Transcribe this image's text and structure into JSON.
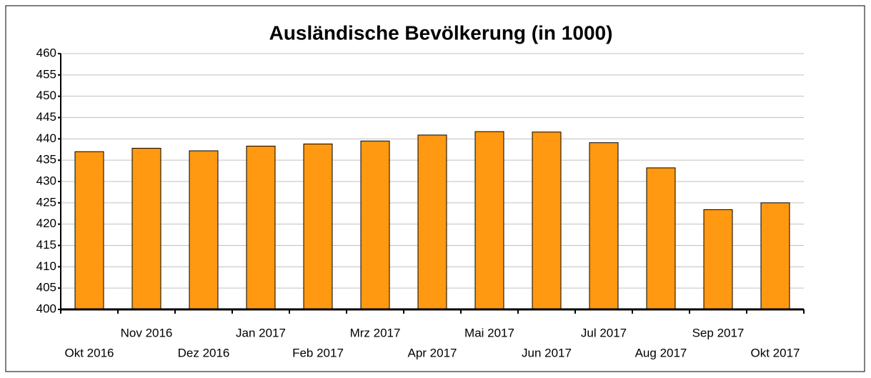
{
  "chart_data": {
    "type": "bar",
    "title": "Ausländische Bevölkerung (in 1000)",
    "categories": [
      "Okt 2016",
      "Nov 2016",
      "Dez 2016",
      "Jan 2017",
      "Feb 2017",
      "Mrz 2017",
      "Apr 2017",
      "Mai 2017",
      "Jun 2017",
      "Jul 2017",
      "Aug 2017",
      "Sep 2017",
      "Okt 2017"
    ],
    "values": [
      437,
      437.8,
      437.2,
      438.3,
      438.8,
      439.5,
      440.9,
      441.7,
      441.6,
      439.1,
      433.2,
      423.4,
      425
    ],
    "color": "#ff9911",
    "ylim": [
      400,
      460
    ],
    "yticks": [
      400,
      405,
      410,
      415,
      420,
      425,
      430,
      435,
      440,
      445,
      450,
      455,
      460
    ],
    "grid": true
  }
}
